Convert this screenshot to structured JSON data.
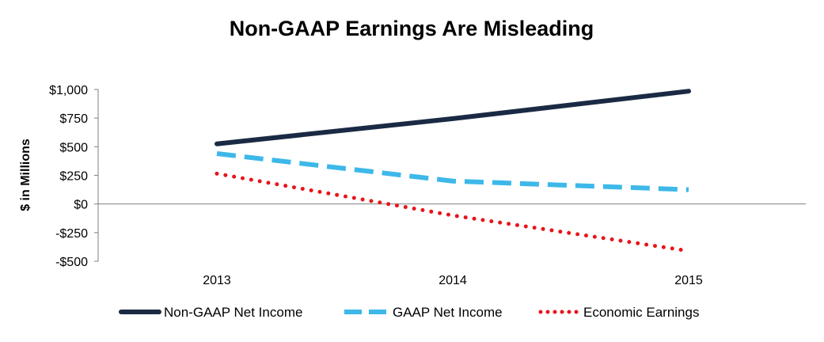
{
  "chart_data": {
    "type": "line",
    "title": "Non-GAAP Earnings Are Misleading",
    "xlabel": "",
    "ylabel": "$ in Millions",
    "categories": [
      "2013",
      "2014",
      "2015"
    ],
    "ylim": [
      -500,
      1000
    ],
    "yticks": [
      1000,
      750,
      500,
      250,
      0,
      -250,
      -500
    ],
    "ytick_labels": [
      "$1,000",
      "$750",
      "$500",
      "$250",
      "$0",
      "-$250",
      "-$500"
    ],
    "grid": false,
    "legend_position": "bottom",
    "series": [
      {
        "name": "Non-GAAP Net Income",
        "values": [
          525,
          745,
          985
        ],
        "color": "#1b2a44",
        "style": "solid"
      },
      {
        "name": "GAAP Net Income",
        "values": [
          440,
          200,
          125
        ],
        "color": "#3db8e9",
        "style": "dashed"
      },
      {
        "name": "Economic Earnings",
        "values": [
          265,
          -100,
          -410
        ],
        "color": "#e8141b",
        "style": "dotted"
      }
    ]
  }
}
